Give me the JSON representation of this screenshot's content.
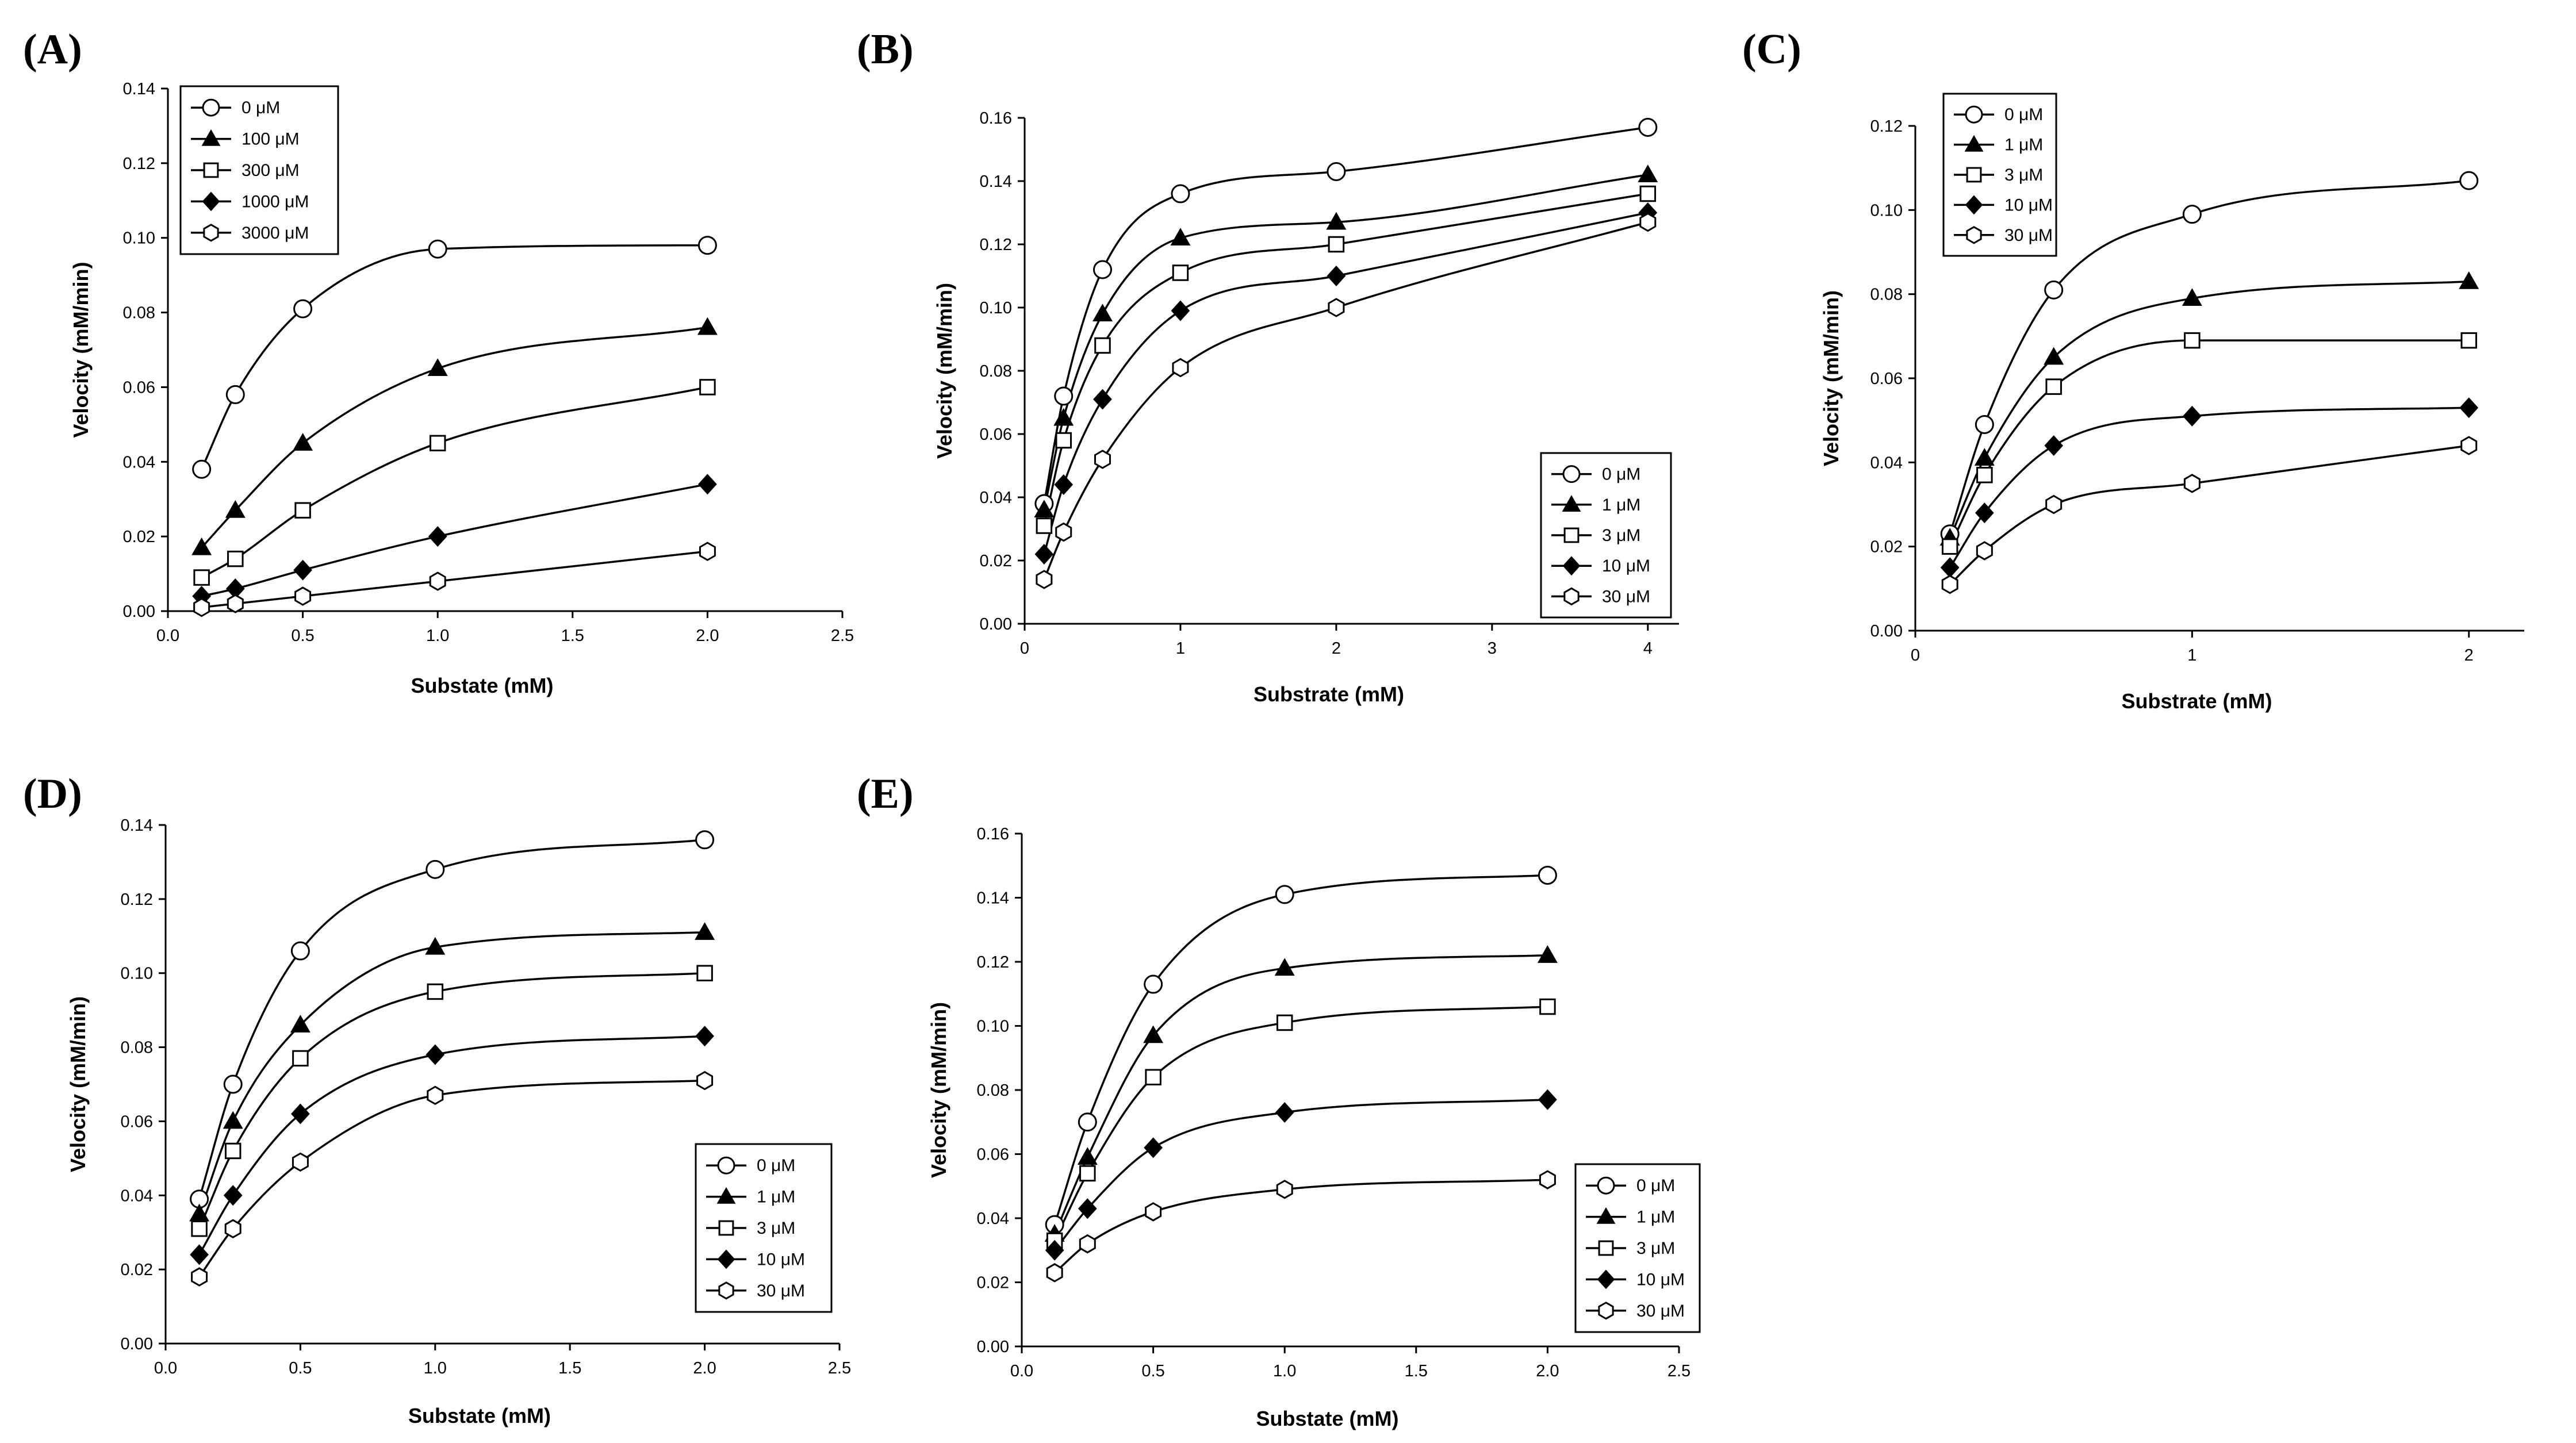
{
  "chart_data": [
    {
      "panel": "(A)",
      "type": "line",
      "xlabel": "Substate (mM)",
      "ylabel": "Velocity (mM/min)",
      "xlim": [
        0,
        2.5
      ],
      "ylim": [
        0,
        0.14
      ],
      "xticks": [
        "0.0",
        "0.5",
        "1.0",
        "1.5",
        "2.0",
        "2.5"
      ],
      "yticks": [
        "0.00",
        "0.02",
        "0.04",
        "0.06",
        "0.08",
        "0.10",
        "0.12",
        "0.14"
      ],
      "legend_position": "top-left",
      "x": [
        0.125,
        0.25,
        0.5,
        1.0,
        2.0
      ],
      "series": [
        {
          "name": "0 μM",
          "marker": "circle-open",
          "values": [
            0.038,
            0.058,
            0.081,
            0.097,
            0.098
          ]
        },
        {
          "name": "100 μM",
          "marker": "triangle-filled",
          "values": [
            0.017,
            0.027,
            0.045,
            0.065,
            0.076
          ]
        },
        {
          "name": "300 μM",
          "marker": "square-open",
          "values": [
            0.009,
            0.014,
            0.027,
            0.045,
            0.06
          ]
        },
        {
          "name": "1000 μM",
          "marker": "diamond-filled",
          "values": [
            0.004,
            0.006,
            0.011,
            0.02,
            0.034
          ]
        },
        {
          "name": "3000 μM",
          "marker": "hexagon-open",
          "values": [
            0.001,
            0.002,
            0.004,
            0.008,
            0.016
          ]
        }
      ]
    },
    {
      "panel": "(B)",
      "type": "line",
      "xlabel": "Substrate (mM)",
      "ylabel": "Velocity (mM/min)",
      "xlim": [
        0,
        4.2
      ],
      "ylim": [
        0,
        0.16
      ],
      "xticks": [
        "0",
        "1",
        "2",
        "3",
        "4"
      ],
      "yticks": [
        "0.00",
        "0.02",
        "0.04",
        "0.06",
        "0.08",
        "0.10",
        "0.12",
        "0.14",
        "0.16"
      ],
      "legend_position": "bottom-right",
      "x": [
        0.125,
        0.25,
        0.5,
        1.0,
        2.0,
        4.0
      ],
      "series": [
        {
          "name": "0 μM",
          "marker": "circle-open",
          "values": [
            0.038,
            0.072,
            0.112,
            0.136,
            0.143,
            0.157
          ]
        },
        {
          "name": "1 μM",
          "marker": "triangle-filled",
          "values": [
            0.036,
            0.065,
            0.098,
            0.122,
            0.127,
            0.142
          ]
        },
        {
          "name": "3 μM",
          "marker": "square-open",
          "values": [
            0.031,
            0.058,
            0.088,
            0.111,
            0.12,
            0.136
          ]
        },
        {
          "name": "10 μM",
          "marker": "diamond-filled",
          "values": [
            0.022,
            0.044,
            0.071,
            0.099,
            0.11,
            0.13
          ]
        },
        {
          "name": "30 μM",
          "marker": "hexagon-open",
          "values": [
            0.014,
            0.029,
            0.052,
            0.081,
            0.1,
            0.127
          ]
        }
      ]
    },
    {
      "panel": "(C)",
      "type": "line",
      "xlabel": "Substrate (mM)",
      "ylabel": "Velocity (mM/min)",
      "xlim": [
        0,
        2.2
      ],
      "ylim": [
        0,
        0.12
      ],
      "xticks": [
        "0",
        "1",
        "2"
      ],
      "yticks": [
        "0.00",
        "0.02",
        "0.04",
        "0.06",
        "0.08",
        "0.10",
        "0.12"
      ],
      "legend_position": "top-left",
      "x": [
        0.125,
        0.25,
        0.5,
        1.0,
        2.0
      ],
      "series": [
        {
          "name": "0 μM",
          "marker": "circle-open",
          "values": [
            0.023,
            0.049,
            0.081,
            0.099,
            0.107
          ]
        },
        {
          "name": "1 μM",
          "marker": "triangle-filled",
          "values": [
            0.022,
            0.041,
            0.065,
            0.079,
            0.083
          ]
        },
        {
          "name": "3 μM",
          "marker": "square-open",
          "values": [
            0.02,
            0.037,
            0.058,
            0.069,
            0.069
          ]
        },
        {
          "name": "10 μM",
          "marker": "diamond-filled",
          "values": [
            0.015,
            0.028,
            0.044,
            0.051,
            0.053
          ]
        },
        {
          "name": "30 μM",
          "marker": "hexagon-open",
          "values": [
            0.011,
            0.019,
            0.03,
            0.035,
            0.044
          ]
        }
      ]
    },
    {
      "panel": "(D)",
      "type": "line",
      "xlabel": "Substate (mM)",
      "ylabel": "Velocity (mM/min)",
      "xlim": [
        0,
        2.5
      ],
      "ylim": [
        0,
        0.14
      ],
      "xticks": [
        "0.0",
        "0.5",
        "1.0",
        "1.5",
        "2.0",
        "2.5"
      ],
      "yticks": [
        "0.00",
        "0.02",
        "0.04",
        "0.06",
        "0.08",
        "0.10",
        "0.12",
        "0.14"
      ],
      "legend_position": "bottom-right",
      "x": [
        0.125,
        0.25,
        0.5,
        1.0,
        2.0
      ],
      "series": [
        {
          "name": "0 μM",
          "marker": "circle-open",
          "values": [
            0.039,
            0.07,
            0.106,
            0.128,
            0.136
          ]
        },
        {
          "name": "1 μM",
          "marker": "triangle-filled",
          "values": [
            0.035,
            0.06,
            0.086,
            0.107,
            0.111
          ]
        },
        {
          "name": "3 μM",
          "marker": "square-open",
          "values": [
            0.031,
            0.052,
            0.077,
            0.095,
            0.1
          ]
        },
        {
          "name": "10 μM",
          "marker": "diamond-filled",
          "values": [
            0.024,
            0.04,
            0.062,
            0.078,
            0.083
          ]
        },
        {
          "name": "30 μM",
          "marker": "hexagon-open",
          "values": [
            0.018,
            0.031,
            0.049,
            0.067,
            0.071
          ]
        }
      ]
    },
    {
      "panel": "(E)",
      "type": "line",
      "xlabel": "Substate (mM)",
      "ylabel": "Velocity (mM/min)",
      "xlim": [
        0,
        2.5
      ],
      "ylim": [
        0,
        0.16
      ],
      "xticks": [
        "0.0",
        "0.5",
        "1.0",
        "1.5",
        "2.0",
        "2.5"
      ],
      "yticks": [
        "0.00",
        "0.02",
        "0.04",
        "0.06",
        "0.08",
        "0.10",
        "0.12",
        "0.14",
        "0.16"
      ],
      "legend_position": "bottom-right",
      "x": [
        0.125,
        0.25,
        0.5,
        1.0,
        2.0
      ],
      "series": [
        {
          "name": "0 μM",
          "marker": "circle-open",
          "values": [
            0.038,
            0.07,
            0.113,
            0.141,
            0.147
          ]
        },
        {
          "name": "1 μM",
          "marker": "triangle-filled",
          "values": [
            0.035,
            0.059,
            0.097,
            0.118,
            0.122
          ]
        },
        {
          "name": "3 μM",
          "marker": "square-open",
          "values": [
            0.033,
            0.054,
            0.084,
            0.101,
            0.106
          ]
        },
        {
          "name": "10 μM",
          "marker": "diamond-filled",
          "values": [
            0.03,
            0.043,
            0.062,
            0.073,
            0.077
          ]
        },
        {
          "name": "30 μM",
          "marker": "hexagon-open",
          "values": [
            0.023,
            0.032,
            0.042,
            0.049,
            0.052
          ]
        }
      ]
    }
  ]
}
